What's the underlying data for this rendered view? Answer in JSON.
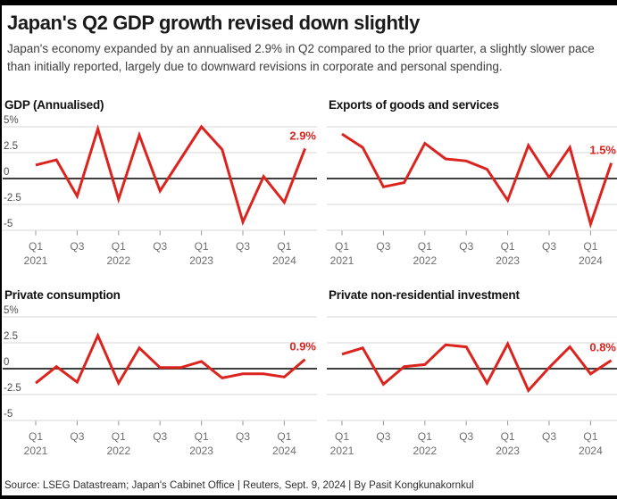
{
  "header": {
    "title": "Japan's Q2 GDP growth revised down slightly",
    "subtitle": "Japan's economy expanded by an annualised 2.9% in Q2 compared to the prior quarter, a slightly slower pace than initially reported, largely due to downward revisions in corporate and personal spending."
  },
  "y_axis": {
    "tick_labels": [
      "5%",
      "2.5",
      "0",
      "-2.5",
      "-5"
    ],
    "max": 5,
    "min": -5,
    "step": 2.5
  },
  "colors": {
    "line": "#dc241f",
    "grid": "#d7d7d7",
    "zero_line": "#3e3e3e",
    "tick": "#979797",
    "frame": "#000000"
  },
  "chart_data": [
    {
      "type": "line",
      "title": "GDP (Annualised)",
      "end_label": "2.9%",
      "y_axis_visible": true,
      "ylim": [
        -5,
        5
      ],
      "grid": true,
      "x": [
        "Q1 2021",
        "Q2 2021",
        "Q3 2021",
        "Q4 2021",
        "Q1 2022",
        "Q2 2022",
        "Q3 2022",
        "Q4 2022",
        "Q1 2023",
        "Q2 2023",
        "Q3 2023",
        "Q4 2023",
        "Q1 2024",
        "Q2 2024"
      ],
      "values": [
        1.3,
        1.8,
        -1.7,
        4.8,
        -2.0,
        4.2,
        -1.2,
        1.9,
        5.0,
        2.8,
        -4.2,
        0.2,
        -2.3,
        2.9
      ]
    },
    {
      "type": "line",
      "title": "Exports of goods and services",
      "end_label": "1.5%",
      "y_axis_visible": false,
      "ylim": [
        -5,
        5
      ],
      "grid": true,
      "x": [
        "Q1 2021",
        "Q2 2021",
        "Q3 2021",
        "Q4 2021",
        "Q1 2022",
        "Q2 2022",
        "Q3 2022",
        "Q4 2022",
        "Q1 2023",
        "Q2 2023",
        "Q3 2023",
        "Q4 2023",
        "Q1 2024",
        "Q2 2024"
      ],
      "values": [
        4.3,
        3.0,
        -0.8,
        -0.4,
        3.4,
        1.9,
        1.7,
        0.9,
        -2.1,
        3.2,
        0.1,
        3.0,
        -4.4,
        1.5
      ]
    },
    {
      "type": "line",
      "title": "Private consumption",
      "end_label": "0.9%",
      "y_axis_visible": true,
      "ylim": [
        -5,
        5
      ],
      "grid": true,
      "x": [
        "Q1 2021",
        "Q2 2021",
        "Q3 2021",
        "Q4 2021",
        "Q1 2022",
        "Q2 2022",
        "Q3 2022",
        "Q4 2022",
        "Q1 2023",
        "Q2 2023",
        "Q3 2023",
        "Q4 2023",
        "Q1 2024",
        "Q2 2024"
      ],
      "values": [
        -1.4,
        0.2,
        -1.3,
        3.2,
        -1.4,
        2.0,
        0.1,
        0.1,
        0.7,
        -0.9,
        -0.5,
        -0.5,
        -0.8,
        0.9
      ]
    },
    {
      "type": "line",
      "title": "Private non-residential investment",
      "end_label": "0.8%",
      "y_axis_visible": false,
      "ylim": [
        -5,
        5
      ],
      "grid": true,
      "x": [
        "Q1 2021",
        "Q2 2021",
        "Q3 2021",
        "Q4 2021",
        "Q1 2022",
        "Q2 2022",
        "Q3 2022",
        "Q4 2022",
        "Q1 2023",
        "Q2 2023",
        "Q3 2023",
        "Q4 2023",
        "Q1 2024",
        "Q2 2024"
      ],
      "values": [
        1.4,
        2.0,
        -1.5,
        0.2,
        0.4,
        2.3,
        2.1,
        -1.4,
        2.4,
        -2.1,
        0.1,
        2.1,
        -0.5,
        0.8
      ]
    }
  ],
  "footer": {
    "text": "Source: LSEG Datastream; Japan's Cabinet Office | Reuters, Sept. 9, 2024 | By Pasit Kongkunakornkul"
  }
}
